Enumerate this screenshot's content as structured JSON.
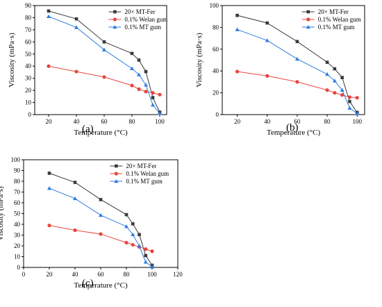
{
  "panel_labels": [
    "(a)",
    "(b)",
    "(c)"
  ],
  "series_names": [
    "20× MT-Fer",
    "0.1% Welan gum",
    "0.1% MT gum"
  ],
  "colors": {
    "black": "#3a3a3a",
    "red": "#e8453c",
    "blue": "#2d7be0"
  },
  "chart_data": [
    {
      "type": "line",
      "panel": "(a)",
      "xlabel": "Temperature (°C)",
      "ylabel": "Viscosity (mPa·s)",
      "xlim": [
        10,
        105
      ],
      "ylim": [
        0,
        90
      ],
      "xticks": [
        20,
        40,
        60,
        80,
        100
      ],
      "yticks": [
        0,
        10,
        20,
        30,
        40,
        50,
        60,
        70,
        80,
        90
      ],
      "legend": "top-right",
      "series": [
        {
          "name": "20× MT-Fer",
          "color": "black",
          "marker": "square",
          "x": [
            20,
            40,
            60,
            80,
            85,
            90,
            95,
            100
          ],
          "y": [
            85.5,
            79,
            60,
            50.5,
            45,
            35.5,
            14,
            2
          ]
        },
        {
          "name": "0.1% Welan gum",
          "color": "red",
          "marker": "circle",
          "x": [
            20,
            40,
            60,
            80,
            85,
            90,
            95,
            100
          ],
          "y": [
            40,
            35.5,
            31,
            24,
            21,
            19,
            18,
            16.5
          ]
        },
        {
          "name": "0.1% MT gum",
          "color": "blue",
          "marker": "triangle",
          "x": [
            20,
            40,
            60,
            80,
            85,
            90,
            95,
            100
          ],
          "y": [
            81,
            72,
            53.5,
            38,
            33,
            24.5,
            8,
            1
          ]
        }
      ]
    },
    {
      "type": "line",
      "panel": "(b)",
      "xlabel": "Temperature (°C)",
      "ylabel": "Viscosity (mPa·s)",
      "xlim": [
        10,
        105
      ],
      "ylim": [
        0,
        100
      ],
      "xticks": [
        20,
        40,
        60,
        80,
        100
      ],
      "yticks": [
        0,
        20,
        40,
        60,
        80,
        100
      ],
      "legend": "top-right",
      "series": [
        {
          "name": "20× MT-Fer",
          "color": "black",
          "marker": "square",
          "x": [
            20,
            40,
            60,
            80,
            85,
            90,
            95,
            100
          ],
          "y": [
            91,
            84,
            67,
            48,
            42,
            34,
            12,
            2
          ]
        },
        {
          "name": "0.1% Welan gum",
          "color": "red",
          "marker": "circle",
          "x": [
            20,
            40,
            60,
            80,
            85,
            90,
            95,
            100
          ],
          "y": [
            39.5,
            35.5,
            30,
            22.5,
            20,
            18,
            16,
            15.5
          ]
        },
        {
          "name": "0.1% MT gum",
          "color": "blue",
          "marker": "triangle",
          "x": [
            20,
            40,
            60,
            80,
            85,
            90,
            95,
            100
          ],
          "y": [
            78,
            68,
            51,
            37,
            31,
            22.5,
            6,
            1
          ]
        }
      ]
    },
    {
      "type": "line",
      "panel": "(c)",
      "xlabel": "Temperature (°C)",
      "ylabel": "Viscosity (mPa·s)",
      "xlim": [
        0,
        120
      ],
      "ylim": [
        0,
        100
      ],
      "xticks": [
        0,
        20,
        40,
        60,
        80,
        100,
        120
      ],
      "yticks": [
        0,
        10,
        20,
        30,
        40,
        50,
        60,
        70,
        80,
        90,
        100
      ],
      "legend": "top-right",
      "series": [
        {
          "name": "20× MT-Fer",
          "color": "black",
          "marker": "square",
          "x": [
            20,
            40,
            60,
            80,
            85,
            90,
            95,
            100
          ],
          "y": [
            87.5,
            79,
            63,
            49,
            40.5,
            30.5,
            11,
            2
          ]
        },
        {
          "name": "0.1% Welan gum",
          "color": "red",
          "marker": "circle",
          "x": [
            20,
            40,
            60,
            80,
            85,
            90,
            95,
            100
          ],
          "y": [
            39,
            34.5,
            31,
            23,
            21,
            19,
            17,
            15
          ]
        },
        {
          "name": "0.1% MT gum",
          "color": "blue",
          "marker": "triangle",
          "x": [
            20,
            40,
            60,
            80,
            85,
            90,
            95,
            100
          ],
          "y": [
            73.5,
            64,
            48.5,
            38,
            30.5,
            20,
            5,
            0.5
          ]
        }
      ]
    }
  ]
}
